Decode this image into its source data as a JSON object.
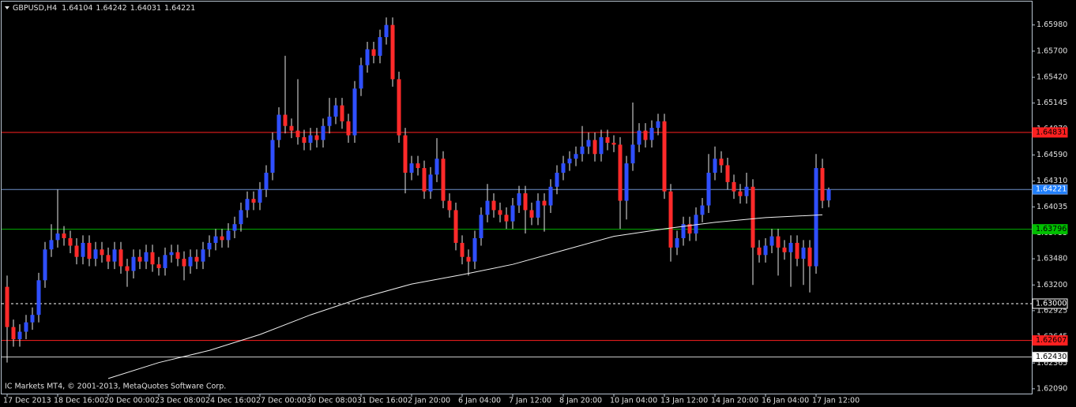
{
  "chart_data": {
    "type": "candlestick",
    "symbol": "GBPUSD,H4",
    "header_ohlc": [
      1.64104,
      1.64242,
      1.64031,
      1.64221
    ],
    "watermark": "IC Markets MT4, © 2001-2013, MetaQuotes Software Corp.",
    "up_color": "#2f4fff",
    "down_color": "#ff2a2a",
    "wick_color": "#e8e8e8",
    "background": "#000000",
    "grid": false,
    "ylim": [
      1.6203,
      1.6623
    ],
    "yticks": [
      {
        "value": 1.6598,
        "label": "1.65980"
      },
      {
        "value": 1.657,
        "label": "1.65700"
      },
      {
        "value": 1.6542,
        "label": "1.65420"
      },
      {
        "value": 1.65145,
        "label": "1.65145"
      },
      {
        "value": 1.6487,
        "label": "1.64870"
      },
      {
        "value": 1.6459,
        "label": "1.64590"
      },
      {
        "value": 1.6431,
        "label": "1.64310"
      },
      {
        "value": 1.64035,
        "label": "1.64035"
      },
      {
        "value": 1.63755,
        "label": "1.63755"
      },
      {
        "value": 1.6348,
        "label": "1.63480"
      },
      {
        "value": 1.632,
        "label": "1.63200"
      },
      {
        "value": 1.62925,
        "label": "1.62925"
      },
      {
        "value": 1.62645,
        "label": "1.62645"
      },
      {
        "value": 1.62365,
        "label": "1.62365"
      },
      {
        "value": 1.6209,
        "label": "1.62090"
      }
    ],
    "levels": [
      {
        "value": 1.64831,
        "label": "1.64831",
        "color": "#ff2020",
        "tag_bg": "#ff2020",
        "tag_fg": "#000000",
        "dash": false
      },
      {
        "value": 1.64221,
        "label": "1.64221",
        "color": "#6d8fc8",
        "tag_bg": "#1e7fff",
        "tag_fg": "#ffffff",
        "dash": false
      },
      {
        "value": 1.63796,
        "label": "1.63796",
        "color": "#00b000",
        "tag_bg": "#00c000",
        "tag_fg": "#000000",
        "dash": false
      },
      {
        "value": 1.63,
        "label": "1.63000",
        "color": "#ffffff",
        "tag_bg": "#000000",
        "tag_fg": "#ffffff",
        "dash": true
      },
      {
        "value": 1.62607,
        "label": "1.62607",
        "color": "#ff2020",
        "tag_bg": "#ff2020",
        "tag_fg": "#000000",
        "dash": false
      },
      {
        "value": 1.6243,
        "label": "1.62430",
        "color": "#d0d0d0",
        "tag_bg": "#ffffff",
        "tag_fg": "#000000",
        "dash": false
      }
    ],
    "ma": {
      "color": "#f0f0f0",
      "x": [
        16,
        24,
        32,
        40,
        48,
        56,
        64,
        72,
        80,
        88,
        96,
        104,
        112,
        120,
        129
      ],
      "values": [
        1.622,
        1.6237,
        1.625,
        1.6267,
        1.6288,
        1.6306,
        1.6321,
        1.6331,
        1.6342,
        1.6357,
        1.6372,
        1.638,
        1.6387,
        1.6392,
        1.6395
      ]
    },
    "categories": [
      "17 Dec 2013",
      null,
      null,
      null,
      null,
      null,
      null,
      null,
      "18 Dec 16:00",
      null,
      null,
      null,
      null,
      null,
      null,
      null,
      "20 Dec 00:00",
      null,
      null,
      null,
      null,
      null,
      null,
      null,
      "23 Dec 08:00",
      null,
      null,
      null,
      null,
      null,
      null,
      null,
      "24 Dec 16:00",
      null,
      null,
      null,
      null,
      null,
      null,
      null,
      "27 Dec 00:00",
      null,
      null,
      null,
      null,
      null,
      null,
      null,
      "30 Dec 08:00",
      null,
      null,
      null,
      null,
      null,
      null,
      null,
      "31 Dec 16:00",
      null,
      null,
      null,
      null,
      null,
      null,
      null,
      "2 Jan 20:00",
      null,
      null,
      null,
      null,
      null,
      null,
      null,
      "6 Jan 04:00",
      null,
      null,
      null,
      null,
      null,
      null,
      null,
      "7 Jan 12:00",
      null,
      null,
      null,
      null,
      null,
      null,
      null,
      "8 Jan 20:00",
      null,
      null,
      null,
      null,
      null,
      null,
      null,
      "10 Jan 04:00",
      null,
      null,
      null,
      null,
      null,
      null,
      null,
      "13 Jan 12:00",
      null,
      null,
      null,
      null,
      null,
      null,
      null,
      "14 Jan 20:00",
      null,
      null,
      null,
      null,
      null,
      null,
      null,
      "16 Jan 04:00",
      null,
      null,
      null,
      null,
      null,
      null,
      null,
      "17 Jan 12:00",
      null,
      null
    ],
    "ohlc": [
      [
        1.6318,
        1.633,
        1.6237,
        1.6275
      ],
      [
        1.6275,
        1.6283,
        1.6254,
        1.6262
      ],
      [
        1.6262,
        1.6278,
        1.6254,
        1.627
      ],
      [
        1.627,
        1.6288,
        1.6262,
        1.628
      ],
      [
        1.628,
        1.6296,
        1.6272,
        1.6288
      ],
      [
        1.6288,
        1.6333,
        1.628,
        1.6325
      ],
      [
        1.6325,
        1.6366,
        1.6317,
        1.6358
      ],
      [
        1.6358,
        1.6385,
        1.635,
        1.6368
      ],
      [
        1.6368,
        1.6422,
        1.636,
        1.6375
      ],
      [
        1.6375,
        1.6383,
        1.6362,
        1.637
      ],
      [
        1.637,
        1.6378,
        1.6354,
        1.6362
      ],
      [
        1.6362,
        1.637,
        1.6342,
        1.635
      ],
      [
        1.635,
        1.6373,
        1.6342,
        1.6365
      ],
      [
        1.6365,
        1.6373,
        1.634,
        1.6348
      ],
      [
        1.6348,
        1.6366,
        1.634,
        1.6358
      ],
      [
        1.6358,
        1.6366,
        1.6344,
        1.6352
      ],
      [
        1.6352,
        1.636,
        1.6337,
        1.6345
      ],
      [
        1.6345,
        1.6366,
        1.6337,
        1.6358
      ],
      [
        1.6358,
        1.6366,
        1.6332,
        1.634
      ],
      [
        1.634,
        1.6348,
        1.6318,
        1.6335
      ],
      [
        1.6335,
        1.6358,
        1.6327,
        1.635
      ],
      [
        1.635,
        1.6358,
        1.6337,
        1.6345
      ],
      [
        1.6345,
        1.6363,
        1.6337,
        1.6355
      ],
      [
        1.6355,
        1.6363,
        1.6334,
        1.6342
      ],
      [
        1.6342,
        1.635,
        1.633,
        1.6338
      ],
      [
        1.6338,
        1.636,
        1.633,
        1.6352
      ],
      [
        1.6352,
        1.6363,
        1.6344,
        1.6355
      ],
      [
        1.6355,
        1.6363,
        1.634,
        1.6348
      ],
      [
        1.6348,
        1.6356,
        1.6325,
        1.634
      ],
      [
        1.634,
        1.6358,
        1.6332,
        1.635
      ],
      [
        1.635,
        1.6358,
        1.6337,
        1.6345
      ],
      [
        1.6345,
        1.6366,
        1.6337,
        1.6358
      ],
      [
        1.6358,
        1.6373,
        1.635,
        1.6365
      ],
      [
        1.6365,
        1.638,
        1.6357,
        1.6372
      ],
      [
        1.6372,
        1.638,
        1.636,
        1.6368
      ],
      [
        1.6368,
        1.6386,
        1.636,
        1.6378
      ],
      [
        1.6378,
        1.6393,
        1.637,
        1.6385
      ],
      [
        1.6385,
        1.6408,
        1.6377,
        1.64
      ],
      [
        1.64,
        1.642,
        1.6392,
        1.6412
      ],
      [
        1.6412,
        1.642,
        1.64,
        1.6408
      ],
      [
        1.6408,
        1.643,
        1.64,
        1.6422
      ],
      [
        1.6422,
        1.6448,
        1.6414,
        1.644
      ],
      [
        1.644,
        1.6483,
        1.6432,
        1.6475
      ],
      [
        1.6475,
        1.651,
        1.6467,
        1.6502
      ],
      [
        1.6502,
        1.6565,
        1.6482,
        1.649
      ],
      [
        1.649,
        1.6498,
        1.6477,
        1.6485
      ],
      [
        1.6485,
        1.654,
        1.647,
        1.6478
      ],
      [
        1.6478,
        1.6486,
        1.6464,
        1.6472
      ],
      [
        1.6472,
        1.6488,
        1.6464,
        1.648
      ],
      [
        1.648,
        1.6488,
        1.6467,
        1.6475
      ],
      [
        1.6475,
        1.6498,
        1.6467,
        1.649
      ],
      [
        1.649,
        1.652,
        1.6482,
        1.65
      ],
      [
        1.65,
        1.652,
        1.6492,
        1.6512
      ],
      [
        1.6512,
        1.652,
        1.6487,
        1.6495
      ],
      [
        1.6495,
        1.6503,
        1.6472,
        1.648
      ],
      [
        1.648,
        1.6538,
        1.6472,
        1.653
      ],
      [
        1.653,
        1.6563,
        1.6522,
        1.6555
      ],
      [
        1.6555,
        1.658,
        1.6547,
        1.6572
      ],
      [
        1.6572,
        1.658,
        1.6557,
        1.6565
      ],
      [
        1.6565,
        1.6593,
        1.6557,
        1.6585
      ],
      [
        1.6585,
        1.6606,
        1.6577,
        1.6598
      ],
      [
        1.6598,
        1.6606,
        1.6532,
        1.654
      ],
      [
        1.654,
        1.6548,
        1.6472,
        1.648
      ],
      [
        1.648,
        1.6488,
        1.6418,
        1.644
      ],
      [
        1.644,
        1.6458,
        1.6432,
        1.645
      ],
      [
        1.645,
        1.6458,
        1.6437,
        1.6445
      ],
      [
        1.6445,
        1.6453,
        1.6412,
        1.642
      ],
      [
        1.642,
        1.6446,
        1.6412,
        1.6438
      ],
      [
        1.6438,
        1.6477,
        1.643,
        1.6455
      ],
      [
        1.6455,
        1.6463,
        1.6402,
        1.641
      ],
      [
        1.641,
        1.6418,
        1.6392,
        1.64
      ],
      [
        1.64,
        1.6408,
        1.6357,
        1.6365
      ],
      [
        1.6365,
        1.6373,
        1.6342,
        1.635
      ],
      [
        1.635,
        1.6358,
        1.633,
        1.6345
      ],
      [
        1.6345,
        1.6378,
        1.6337,
        1.637
      ],
      [
        1.637,
        1.6403,
        1.6362,
        1.6395
      ],
      [
        1.6395,
        1.6428,
        1.6387,
        1.641
      ],
      [
        1.641,
        1.6418,
        1.6392,
        1.64
      ],
      [
        1.64,
        1.6408,
        1.6387,
        1.6395
      ],
      [
        1.6395,
        1.6403,
        1.638,
        1.6388
      ],
      [
        1.6388,
        1.6413,
        1.638,
        1.6405
      ],
      [
        1.6405,
        1.6426,
        1.6397,
        1.6418
      ],
      [
        1.6418,
        1.6426,
        1.6375,
        1.64
      ],
      [
        1.64,
        1.6408,
        1.6384,
        1.6392
      ],
      [
        1.6392,
        1.6418,
        1.6384,
        1.641
      ],
      [
        1.641,
        1.6418,
        1.6377,
        1.6405
      ],
      [
        1.6405,
        1.6433,
        1.6397,
        1.6425
      ],
      [
        1.6425,
        1.6448,
        1.6417,
        1.644
      ],
      [
        1.644,
        1.6458,
        1.6432,
        1.645
      ],
      [
        1.645,
        1.6463,
        1.6442,
        1.6455
      ],
      [
        1.6455,
        1.6468,
        1.6447,
        1.646
      ],
      [
        1.646,
        1.649,
        1.6452,
        1.6468
      ],
      [
        1.6468,
        1.6483,
        1.646,
        1.6475
      ],
      [
        1.6475,
        1.6483,
        1.6452,
        1.646
      ],
      [
        1.646,
        1.6486,
        1.6452,
        1.6478
      ],
      [
        1.6478,
        1.6486,
        1.6464,
        1.6472
      ],
      [
        1.6472,
        1.648,
        1.6462,
        1.647
      ],
      [
        1.647,
        1.6478,
        1.638,
        1.641
      ],
      [
        1.641,
        1.6458,
        1.639,
        1.645
      ],
      [
        1.645,
        1.6515,
        1.6442,
        1.647
      ],
      [
        1.647,
        1.6493,
        1.6462,
        1.6485
      ],
      [
        1.6485,
        1.6493,
        1.6467,
        1.6475
      ],
      [
        1.6475,
        1.6496,
        1.6467,
        1.6488
      ],
      [
        1.6488,
        1.6503,
        1.648,
        1.6495
      ],
      [
        1.6495,
        1.6503,
        1.6412,
        1.642
      ],
      [
        1.642,
        1.6428,
        1.6345,
        1.636
      ],
      [
        1.636,
        1.6378,
        1.6352,
        1.637
      ],
      [
        1.637,
        1.6393,
        1.6362,
        1.6385
      ],
      [
        1.6385,
        1.6393,
        1.6367,
        1.6375
      ],
      [
        1.6375,
        1.6403,
        1.6367,
        1.6395
      ],
      [
        1.6395,
        1.6413,
        1.6387,
        1.6405
      ],
      [
        1.6405,
        1.646,
        1.6397,
        1.644
      ],
      [
        1.644,
        1.6468,
        1.6432,
        1.6455
      ],
      [
        1.6455,
        1.6463,
        1.644,
        1.6448
      ],
      [
        1.6448,
        1.6456,
        1.6422,
        1.643
      ],
      [
        1.643,
        1.6438,
        1.6412,
        1.642
      ],
      [
        1.642,
        1.6428,
        1.6407,
        1.6415
      ],
      [
        1.6415,
        1.644,
        1.6407,
        1.6425
      ],
      [
        1.6425,
        1.6433,
        1.632,
        1.636
      ],
      [
        1.636,
        1.6368,
        1.6344,
        1.6352
      ],
      [
        1.6352,
        1.637,
        1.6344,
        1.6362
      ],
      [
        1.6362,
        1.638,
        1.6354,
        1.6372
      ],
      [
        1.6372,
        1.638,
        1.633,
        1.636
      ],
      [
        1.636,
        1.6368,
        1.6347,
        1.6355
      ],
      [
        1.6355,
        1.6373,
        1.6318,
        1.6365
      ],
      [
        1.6365,
        1.6373,
        1.634,
        1.6348
      ],
      [
        1.6348,
        1.6368,
        1.632,
        1.636
      ],
      [
        1.636,
        1.6368,
        1.6312,
        1.634
      ],
      [
        1.634,
        1.646,
        1.6332,
        1.6445
      ],
      [
        1.6445,
        1.6455,
        1.6402,
        1.641
      ],
      [
        1.64104,
        1.64242,
        1.64031,
        1.64221
      ]
    ]
  }
}
